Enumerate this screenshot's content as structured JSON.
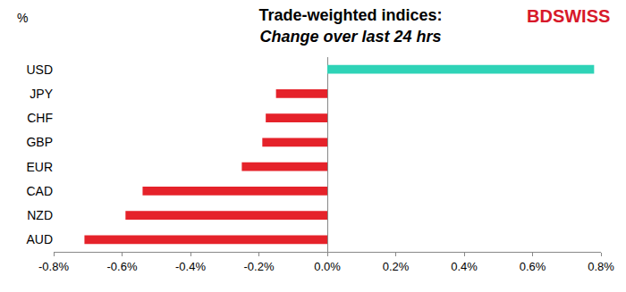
{
  "chart_data": {
    "type": "bar",
    "title": "Trade-weighted indices:",
    "subtitle": "Change over last 24 hrs",
    "annotations": [
      "%",
      "BDSWISS"
    ],
    "orientation": "horizontal",
    "categories": [
      "USD",
      "JPY",
      "CHF",
      "GBP",
      "EUR",
      "CAD",
      "NZD",
      "AUD"
    ],
    "values": [
      0.78,
      -0.15,
      -0.18,
      -0.19,
      -0.25,
      -0.54,
      -0.59,
      -0.71
    ],
    "colors": [
      "#2ed3b7",
      "#e5222a",
      "#e5222a",
      "#e5222a",
      "#e5222a",
      "#e5222a",
      "#e5222a",
      "#e5222a"
    ],
    "xlim": [
      -0.8,
      0.8
    ],
    "xticks": [
      {
        "value": -0.8,
        "label": "-0.8%"
      },
      {
        "value": -0.6,
        "label": "-0.6%"
      },
      {
        "value": -0.4,
        "label": "-0.4%"
      },
      {
        "value": -0.2,
        "label": "-0.2%"
      },
      {
        "value": 0,
        "label": "0.0%"
      },
      {
        "value": 0.2,
        "label": "0.2%"
      },
      {
        "value": 0.4,
        "label": "0.4%"
      },
      {
        "value": 0.6,
        "label": "0.6%"
      },
      {
        "value": 0.8,
        "label": "0.8%"
      }
    ],
    "grid": false
  }
}
